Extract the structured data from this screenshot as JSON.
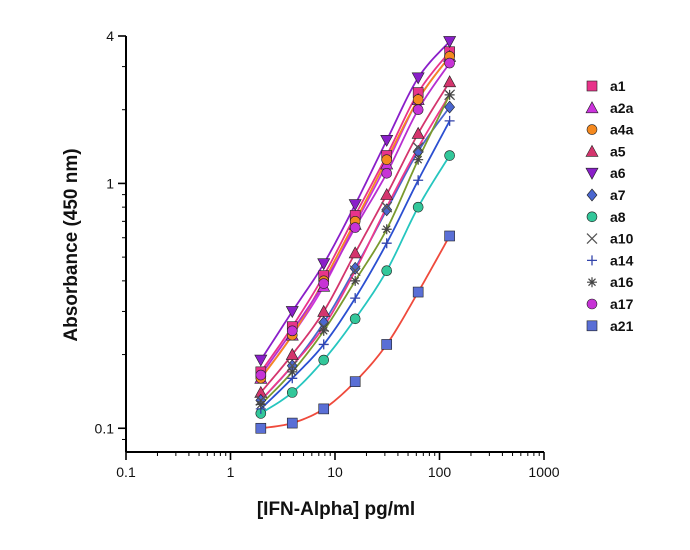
{
  "chart_data": {
    "type": "scatter",
    "title": "",
    "xlabel": "[IFN-Alpha] pg/ml",
    "ylabel": "Absorbance (450 nm)",
    "x_scale": "log",
    "y_scale": "log",
    "xlim": [
      0.1,
      1000
    ],
    "ylim": [
      0.08,
      4
    ],
    "x_ticks": [
      {
        "value": 0.1,
        "label": "0.1"
      },
      {
        "value": 1,
        "label": "1"
      },
      {
        "value": 10,
        "label": "10"
      },
      {
        "value": 100,
        "label": "100"
      },
      {
        "value": 1000,
        "label": "1000"
      }
    ],
    "y_ticks": [
      {
        "value": 0.1,
        "label": "0.1"
      },
      {
        "value": 1,
        "label": "1"
      },
      {
        "value": 4,
        "label": "4"
      }
    ],
    "grid": false,
    "legend_position": "right",
    "x": [
      1.95,
      3.9,
      7.8,
      15.6,
      31.25,
      62.5,
      125
    ],
    "series": [
      {
        "name": "a1",
        "marker": "square",
        "color": "#e8338a",
        "values": [
          0.17,
          0.26,
          0.42,
          0.74,
          1.3,
          2.35,
          3.45
        ]
      },
      {
        "name": "a2a",
        "marker": "triangle-up",
        "color": "#cc33dd",
        "values": [
          0.16,
          0.24,
          0.38,
          0.68,
          1.2,
          2.2,
          3.3
        ]
      },
      {
        "name": "a4a",
        "marker": "circle",
        "color": "#f5891f",
        "values": [
          0.16,
          0.24,
          0.4,
          0.7,
          1.25,
          2.2,
          3.3
        ]
      },
      {
        "name": "a5",
        "marker": "triangle-up",
        "color": "#d4356d",
        "values": [
          0.14,
          0.2,
          0.3,
          0.52,
          0.9,
          1.6,
          2.6
        ]
      },
      {
        "name": "a6",
        "marker": "triangle-down",
        "color": "#8a1fc9",
        "values": [
          0.19,
          0.3,
          0.47,
          0.82,
          1.5,
          2.7,
          3.8
        ]
      },
      {
        "name": "a7",
        "marker": "diamond",
        "color": "#4a66cf",
        "values": [
          0.13,
          0.18,
          0.27,
          0.45,
          0.78,
          1.35,
          2.05
        ]
      },
      {
        "name": "a8",
        "marker": "circle",
        "color": "#33c79a",
        "values": [
          0.115,
          0.14,
          0.19,
          0.28,
          0.44,
          0.8,
          1.3
        ]
      },
      {
        "name": "a10",
        "marker": "x",
        "color": "#555555",
        "values": [
          0.13,
          0.18,
          0.26,
          0.44,
          0.8,
          1.4,
          2.3
        ]
      },
      {
        "name": "a14",
        "marker": "plus",
        "color": "#3344aa",
        "values": [
          0.12,
          0.16,
          0.22,
          0.34,
          0.57,
          1.03,
          1.8
        ]
      },
      {
        "name": "a16",
        "marker": "asterisk",
        "color": "#444444",
        "values": [
          0.125,
          0.17,
          0.25,
          0.4,
          0.65,
          1.25,
          2.3
        ]
      },
      {
        "name": "a17",
        "marker": "circle",
        "color": "#c733d6",
        "values": [
          0.165,
          0.25,
          0.39,
          0.66,
          1.1,
          2.0,
          3.1
        ]
      },
      {
        "name": "a21",
        "marker": "square",
        "color": "#5a6fd6",
        "values": [
          0.1,
          0.105,
          0.12,
          0.155,
          0.22,
          0.36,
          0.61
        ]
      }
    ],
    "curve_colors": {
      "a1": "#e8338a",
      "a2a": "#cc33dd",
      "a4a": "#f5891f",
      "a5": "#d4356d",
      "a6": "#8a1fc9",
      "a7": "#4a66cf",
      "a8": "#26c6bf",
      "a10": "#ee3a8c",
      "a14": "#2b4fd1",
      "a16": "#7a9a2e",
      "a17": "#b72fd0",
      "a21": "#ef4a3c"
    }
  }
}
